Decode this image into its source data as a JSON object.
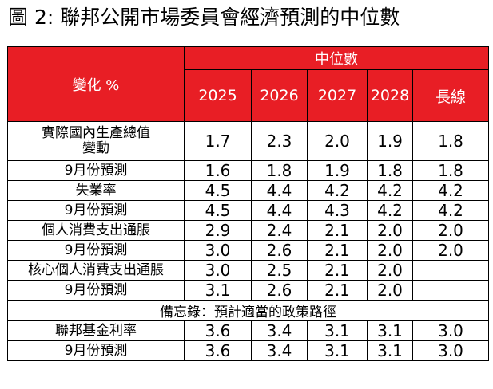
{
  "title": "圖 2: 聯邦公開市場委員會經濟預測的中位數",
  "table": {
    "corner_label": "變化 %",
    "group_header": "中位數",
    "columns": [
      "2025",
      "2026",
      "2027",
      "2028",
      "長線"
    ],
    "rows": [
      {
        "label": "實際國內生產總值\n變動",
        "values": [
          "1.7",
          "2.3",
          "2.0",
          "1.9",
          "1.8"
        ]
      },
      {
        "label": "9月份預測",
        "values": [
          "1.6",
          "1.8",
          "1.9",
          "1.8",
          "1.8"
        ]
      },
      {
        "label": "失業率",
        "values": [
          "4.5",
          "4.4",
          "4.2",
          "4.2",
          "4.2"
        ]
      },
      {
        "label": "9月份預測",
        "values": [
          "4.5",
          "4.4",
          "4.3",
          "4.2",
          "4.2"
        ]
      },
      {
        "label": "個人消費支出通脹",
        "values": [
          "2.9",
          "2.4",
          "2.1",
          "2.0",
          "2.0"
        ]
      },
      {
        "label": "9月份預測",
        "values": [
          "3.0",
          "2.6",
          "2.1",
          "2.0",
          "2.0"
        ]
      },
      {
        "label": "核心個人消費支出通脹",
        "values": [
          "3.0",
          "2.5",
          "2.1",
          "2.0",
          ""
        ]
      },
      {
        "label": "9月份預測",
        "values": [
          "3.1",
          "2.6",
          "2.1",
          "2.0",
          ""
        ]
      }
    ],
    "memo_label": "備忘錄：預計適當的政策路徑",
    "memo_rows": [
      {
        "label": "聯邦基金利率",
        "values": [
          "3.6",
          "3.4",
          "3.1",
          "3.1",
          "3.0"
        ]
      },
      {
        "label": "9月份預測",
        "values": [
          "3.6",
          "3.4",
          "3.1",
          "3.1",
          "3.0"
        ]
      }
    ]
  }
}
